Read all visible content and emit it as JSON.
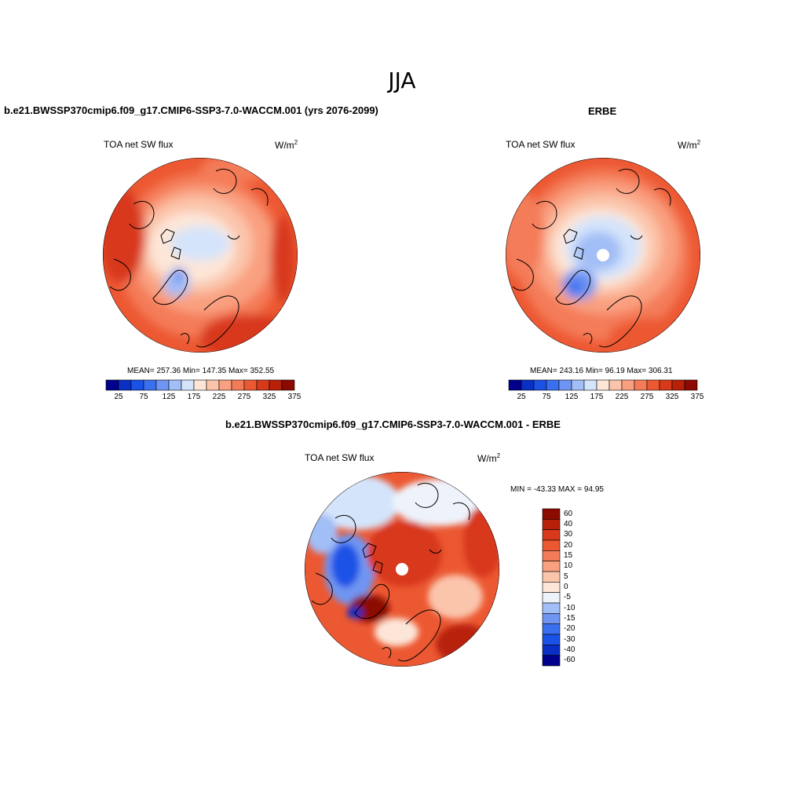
{
  "figure": {
    "title": "JJA",
    "panels": [
      {
        "title": "b.e21.BWSSP370cmip6.f09_g17.CMIP6-SSP3-7.0-WACCM.001 (yrs 2076-2099)",
        "variable": "TOA net SW flux",
        "units": "W/m",
        "units_exp": "2",
        "stats": "MEAN= 257.36  Min= 147.35  Max= 352.55",
        "mean": 257.36,
        "min": 147.35,
        "max": 352.55
      },
      {
        "title": "ERBE",
        "variable": "TOA net SW flux",
        "units": "W/m",
        "units_exp": "2",
        "stats": "MEAN= 243.16  Min=  96.19  Max= 306.31",
        "mean": 243.16,
        "min": 96.19,
        "max": 306.31
      },
      {
        "title": "b.e21.BWSSP370cmip6.f09_g17.CMIP6-SSP3-7.0-WACCM.001 - ERBE",
        "variable": "TOA net SW flux",
        "units": "W/m",
        "units_exp": "2",
        "stats": "MIN = -43.33 MAX =  94.95",
        "min": -43.33,
        "max": 94.95
      }
    ],
    "colorbar_abs": {
      "ticks": [
        "25",
        "75",
        "125",
        "175",
        "225",
        "275",
        "325",
        "375"
      ],
      "colors": [
        "#00008c",
        "#0a2fc4",
        "#1a52e6",
        "#3a6ff0",
        "#6f95f2",
        "#a2bef6",
        "#d4e4fb",
        "#fde6d8",
        "#fbc5ab",
        "#f9a080",
        "#f47b58",
        "#ec5832",
        "#d8391a",
        "#b82008",
        "#8c0a00"
      ]
    },
    "colorbar_diff": {
      "labels": [
        "60",
        "40",
        "30",
        "20",
        "15",
        "10",
        "5",
        "0",
        "-5",
        "-10",
        "-15",
        "-20",
        "-30",
        "-40",
        "-60"
      ],
      "colors": [
        "#8c0a00",
        "#b82008",
        "#d8391a",
        "#ec5832",
        "#f47b58",
        "#f9a080",
        "#fbc5ab",
        "#fde6d8",
        "#eef3fb",
        "#a2bef6",
        "#6f95f2",
        "#3a6ff0",
        "#1a52e6",
        "#0a2fc4",
        "#00008c"
      ]
    }
  }
}
